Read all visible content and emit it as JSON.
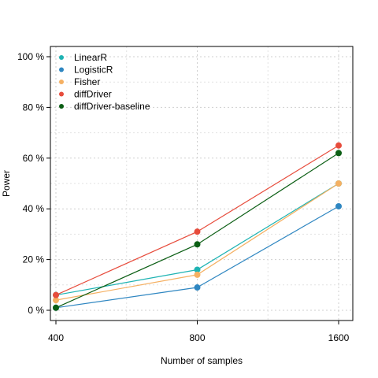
{
  "chart_data": {
    "type": "line",
    "x": [
      400,
      800,
      1600
    ],
    "x_tick_labels": [
      "400",
      "800",
      "1600"
    ],
    "xlabel": "Number of samples",
    "ylabel": "Power",
    "ylim": [
      0,
      100
    ],
    "y_ticks": [
      0,
      20,
      40,
      60,
      80,
      100
    ],
    "y_tick_labels": [
      "0 %",
      "20 %",
      "40 %",
      "60 %",
      "80 %",
      "100 %"
    ],
    "grid": true,
    "grid_style": "dotted",
    "legend_position": "top-left",
    "series": [
      {
        "name": "LinearR",
        "color": "#1EB3B3",
        "values": [
          6,
          16,
          50
        ]
      },
      {
        "name": "LogisticR",
        "color": "#2E86C1",
        "values": [
          1,
          9,
          41
        ]
      },
      {
        "name": "Fisher",
        "color": "#F5B062",
        "values": [
          4,
          14,
          50
        ]
      },
      {
        "name": "diffDriver",
        "color": "#E74C3C",
        "values": [
          6,
          31,
          65
        ]
      },
      {
        "name": "diffDriver-baseline",
        "color": "#0B5E14",
        "values": [
          1,
          26,
          62
        ]
      }
    ]
  }
}
